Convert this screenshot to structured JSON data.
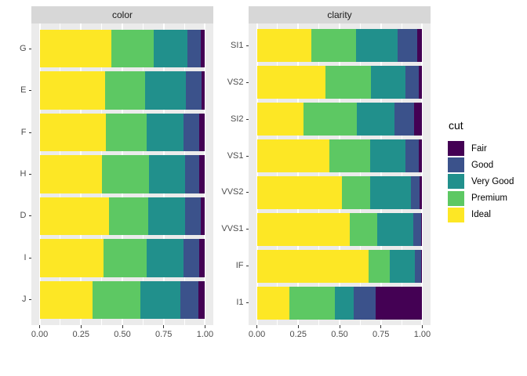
{
  "chart_data": {
    "type": "bar",
    "subtype": "horizontal-stacked-filled",
    "normalized": true,
    "legend": {
      "title": "cut",
      "position": "right",
      "entries": [
        "Fair",
        "Good",
        "Very Good",
        "Premium",
        "Ideal"
      ]
    },
    "colors": {
      "Fair": "#440154",
      "Good": "#3B528B",
      "Very Good": "#21908C",
      "Premium": "#5DC863",
      "Ideal": "#FDE725"
    },
    "stack_order": [
      "Ideal",
      "Premium",
      "Very Good",
      "Good",
      "Fair"
    ],
    "x_axis": {
      "limits": [
        0,
        1
      ],
      "ticks": [
        0,
        0.25,
        0.5,
        0.75,
        1
      ],
      "tick_labels": [
        "0.00",
        "0.25",
        "0.50",
        "0.75",
        "1.00"
      ],
      "minor_ticks": [
        0.125,
        0.375,
        0.625,
        0.875
      ],
      "expansion": 0.05
    },
    "style": {
      "panel_background": "#EBEBEB",
      "strip_background": "#D7D7D7",
      "gridline_color": "#FFFFFF",
      "axis_text_color": "#4D4D4D",
      "tick_mark_color": "#333333",
      "grid": true
    },
    "facets": [
      {
        "title": "color",
        "categories": [
          "G",
          "E",
          "F",
          "H",
          "D",
          "I",
          "J"
        ],
        "series": [
          {
            "name": "Ideal",
            "values": [
              0.432,
              0.398,
              0.401,
              0.375,
              0.418,
              0.386,
              0.319
            ]
          },
          {
            "name": "Premium",
            "values": [
              0.259,
              0.239,
              0.244,
              0.284,
              0.237,
              0.263,
              0.288
            ]
          },
          {
            "name": "Very Good",
            "values": [
              0.204,
              0.245,
              0.227,
              0.22,
              0.223,
              0.222,
              0.242
            ]
          },
          {
            "name": "Good",
            "values": [
              0.077,
              0.095,
              0.095,
              0.085,
              0.098,
              0.096,
              0.109
            ]
          },
          {
            "name": "Fair",
            "values": [
              0.028,
              0.023,
              0.033,
              0.036,
              0.024,
              0.033,
              0.042
            ]
          }
        ]
      },
      {
        "title": "clarity",
        "categories": [
          "SI1",
          "VS2",
          "SI2",
          "VS1",
          "VVS2",
          "VVS1",
          "IF",
          "I1"
        ],
        "series": [
          {
            "name": "Ideal",
            "values": [
              0.328,
              0.414,
              0.282,
              0.44,
              0.514,
              0.56,
              0.677,
              0.197
            ]
          },
          {
            "name": "Premium",
            "values": [
              0.274,
              0.274,
              0.321,
              0.243,
              0.172,
              0.168,
              0.128,
              0.277
            ]
          },
          {
            "name": "Very Good",
            "values": [
              0.248,
              0.211,
              0.228,
              0.217,
              0.244,
              0.216,
              0.15,
              0.113
            ]
          },
          {
            "name": "Good",
            "values": [
              0.119,
              0.08,
              0.118,
              0.079,
              0.056,
              0.051,
              0.04,
              0.13
            ]
          },
          {
            "name": "Fair",
            "values": [
              0.031,
              0.021,
              0.051,
              0.021,
              0.014,
              0.005,
              0.005,
              0.283
            ]
          }
        ]
      }
    ]
  }
}
